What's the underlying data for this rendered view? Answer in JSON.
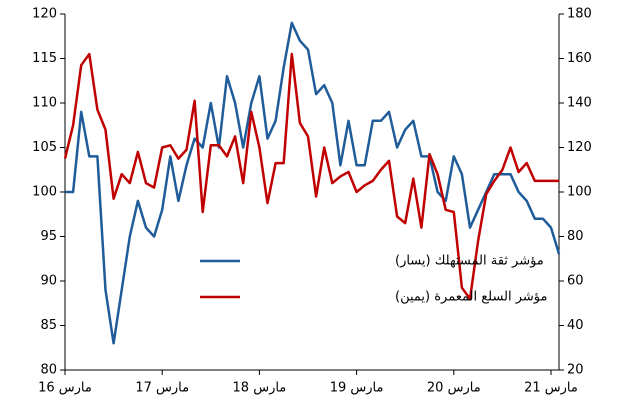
{
  "chart_data": {
    "type": "line",
    "categories": [
      "مارس 16",
      null,
      null,
      null,
      null,
      null,
      null,
      null,
      null,
      null,
      null,
      null,
      "مارس 17",
      null,
      null,
      null,
      null,
      null,
      null,
      null,
      null,
      null,
      null,
      null,
      "مارس 18",
      null,
      null,
      null,
      null,
      null,
      null,
      null,
      null,
      null,
      null,
      null,
      "مارس 19",
      null,
      null,
      null,
      null,
      null,
      null,
      null,
      null,
      null,
      null,
      null,
      "مارس 20",
      null,
      null,
      null,
      null,
      null,
      null,
      null,
      null,
      null,
      null,
      null,
      "مارس 21",
      null
    ],
    "series": [
      {
        "name": "مؤشر ثقة المستهلك (يسار)",
        "color": "#1f5c99",
        "axis": "y",
        "values": [
          100,
          100,
          109,
          104,
          104,
          89,
          83,
          89,
          95,
          99,
          96,
          95,
          98,
          104,
          99,
          103,
          106,
          105,
          110,
          105,
          113,
          110,
          105,
          110,
          113,
          106,
          108,
          114,
          119,
          117,
          116,
          111,
          112,
          110,
          103,
          108,
          103,
          103,
          108,
          108,
          109,
          105,
          107,
          108,
          104,
          104,
          100,
          99,
          104,
          102,
          96,
          98,
          100,
          102,
          102,
          102,
          100,
          99,
          97,
          97,
          96,
          93
        ]
      },
      {
        "name": "مؤشر السلع المعمرة (يمين)",
        "color": "#c00000",
        "axis": "y2",
        "values": [
          115,
          130,
          157,
          162,
          137,
          128,
          97,
          108,
          104,
          118,
          104,
          102,
          120,
          121,
          115,
          119,
          141,
          91,
          121,
          121,
          116,
          125,
          104,
          136,
          120,
          95,
          113,
          113,
          162,
          131,
          125,
          98,
          120,
          104,
          107,
          109,
          100,
          103,
          105,
          110,
          114,
          89,
          86,
          106,
          84,
          117,
          108,
          92,
          91,
          57,
          52,
          78,
          99,
          105,
          110,
          120,
          109,
          113,
          105,
          105,
          105,
          105
        ]
      }
    ],
    "ylim": [
      80,
      120
    ],
    "yticks": [
      80,
      85,
      90,
      95,
      100,
      105,
      110,
      115,
      120
    ],
    "y2lim": [
      20,
      180
    ],
    "y2ticks": [
      20,
      40,
      60,
      80,
      100,
      120,
      140,
      160,
      180
    ],
    "legend": "center"
  }
}
